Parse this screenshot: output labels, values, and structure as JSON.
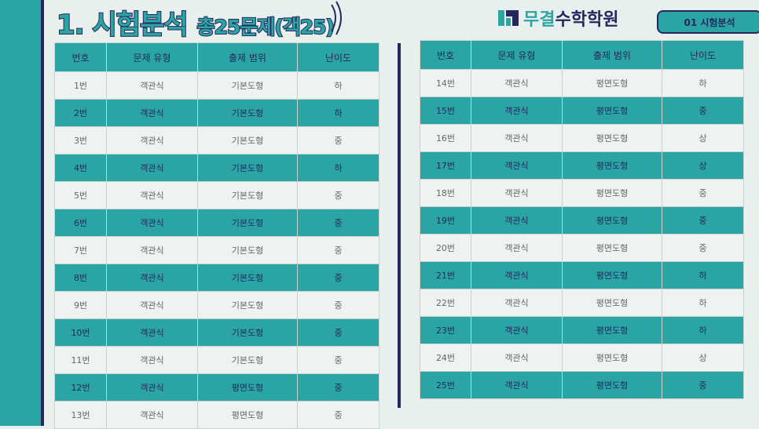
{
  "header": {
    "title_main": "1. 시험분석",
    "title_sub": "총25문제(객25)",
    "brand_part1": "무결",
    "brand_part2": "수학학원",
    "badge": "01 시험분석"
  },
  "table_headers": [
    "번호",
    "문제 유형",
    "출제 범위",
    "난이도"
  ],
  "left_rows": [
    [
      "1번",
      "객관식",
      "기본도형",
      "하"
    ],
    [
      "2번",
      "객관식",
      "기본도형",
      "하"
    ],
    [
      "3번",
      "객관식",
      "기본도형",
      "중"
    ],
    [
      "4번",
      "객관식",
      "기본도형",
      "하"
    ],
    [
      "5번",
      "객관식",
      "기본도형",
      "중"
    ],
    [
      "6번",
      "객관식",
      "기본도형",
      "중"
    ],
    [
      "7번",
      "객관식",
      "기본도형",
      "중"
    ],
    [
      "8번",
      "객관식",
      "기본도형",
      "중"
    ],
    [
      "9번",
      "객관식",
      "기본도형",
      "중"
    ],
    [
      "10번",
      "객관식",
      "기본도형",
      "중"
    ],
    [
      "11번",
      "객관식",
      "기본도형",
      "중"
    ],
    [
      "12번",
      "객관식",
      "평면도형",
      "중"
    ],
    [
      "13번",
      "객관식",
      "평면도형",
      "중"
    ]
  ],
  "right_rows": [
    [
      "14번",
      "객관식",
      "평면도형",
      "하"
    ],
    [
      "15번",
      "객관식",
      "평면도형",
      "중"
    ],
    [
      "16번",
      "객관식",
      "평면도형",
      "상"
    ],
    [
      "17번",
      "객관식",
      "평면도형",
      "상"
    ],
    [
      "18번",
      "객관식",
      "평면도형",
      "중"
    ],
    [
      "19번",
      "객관식",
      "평면도형",
      "중"
    ],
    [
      "20번",
      "객관식",
      "평면도형",
      "중"
    ],
    [
      "21번",
      "객관식",
      "평면도형",
      "하"
    ],
    [
      "22번",
      "객관식",
      "평면도형",
      "하"
    ],
    [
      "23번",
      "객관식",
      "평면도형",
      "하"
    ],
    [
      "24번",
      "객관식",
      "평면도형",
      "상"
    ],
    [
      "25번",
      "객관식",
      "평면도형",
      "중"
    ]
  ],
  "colors": {
    "accent": "#2aa5a4",
    "navy": "#25285e",
    "background": "#e9efec"
  }
}
